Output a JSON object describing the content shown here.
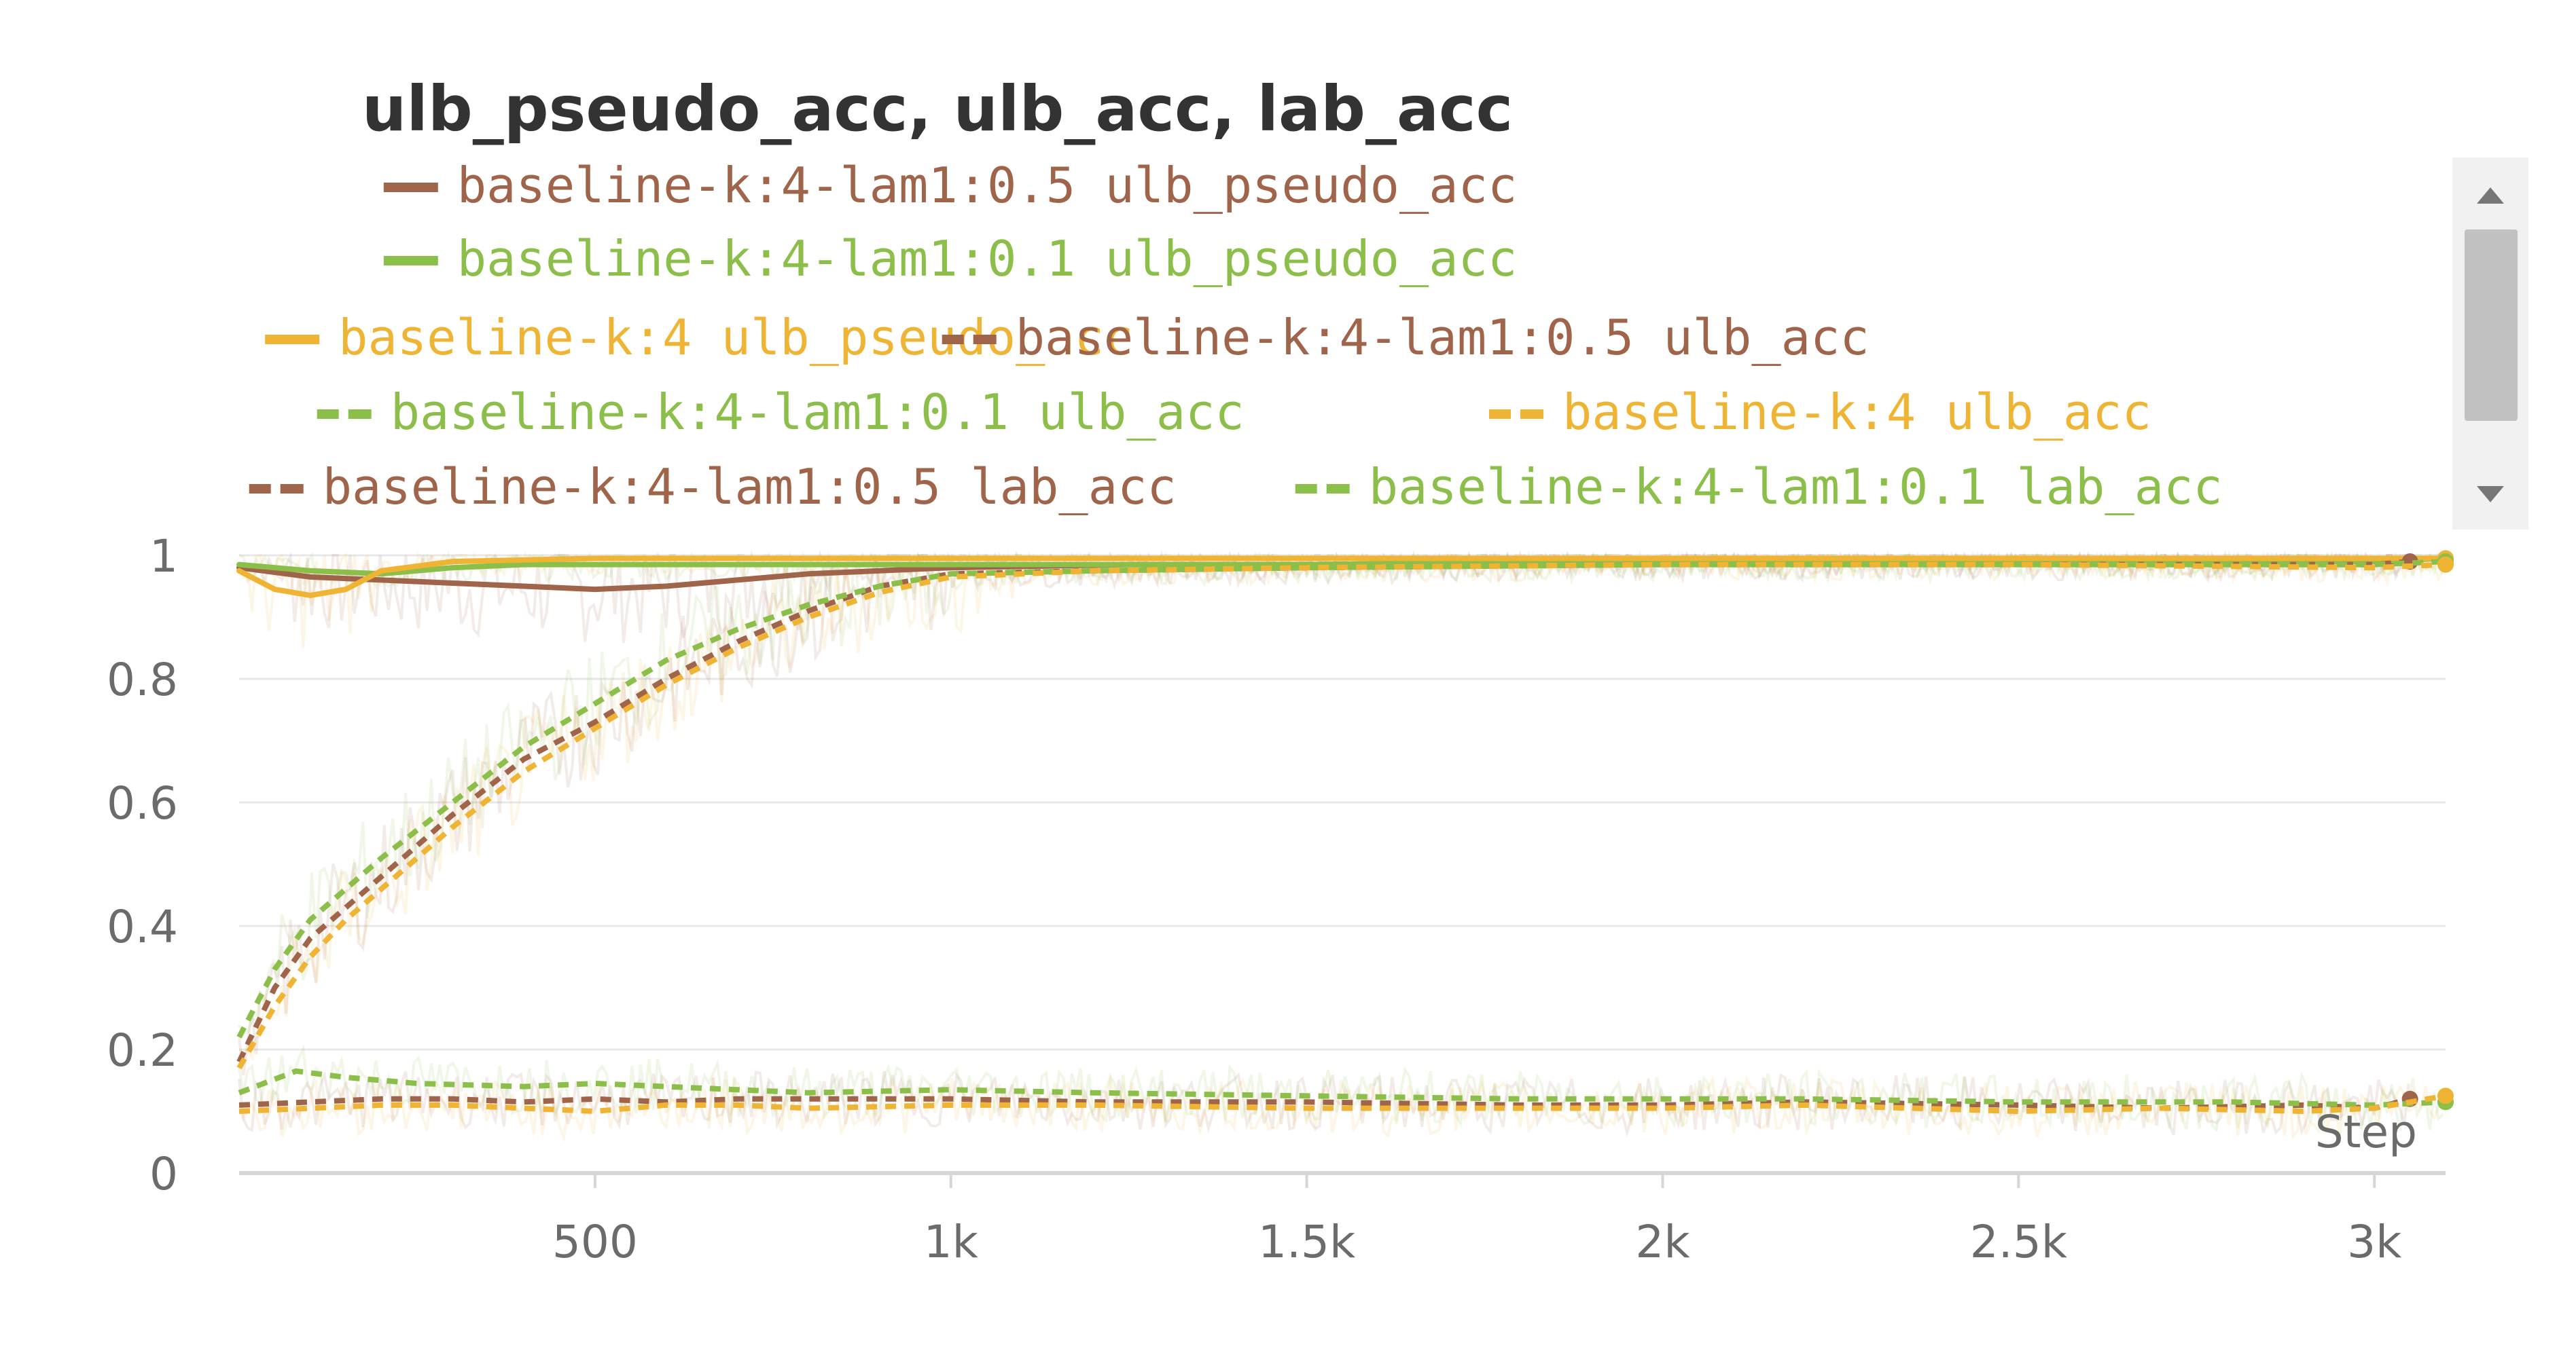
{
  "chart_data": {
    "type": "line",
    "title": "ulb_pseudo_acc, ulb_acc, lab_acc",
    "xlabel": "Step",
    "ylabel": "",
    "xlim": [
      0,
      3100
    ],
    "ylim": [
      0,
      1
    ],
    "xticks": [
      500,
      1000,
      1500,
      2000,
      2500,
      3000
    ],
    "xtick_labels": [
      "500",
      "1k",
      "1.5k",
      "2k",
      "2.5k",
      "3k"
    ],
    "yticks": [
      0,
      0.2,
      0.4,
      0.6,
      0.8,
      1
    ],
    "ytick_labels": [
      "0",
      "0.2",
      "0.4",
      "0.6",
      "0.8",
      "1"
    ],
    "grid": true,
    "legend_position": "top",
    "colors": {
      "brown": "#a0644b",
      "green": "#8cbf4a",
      "orange": "#f0b435",
      "raw_band": "#efe6cf",
      "axis": "#d6d6d6",
      "grid": "#e8e8e8"
    },
    "series": [
      {
        "name": "baseline-k:4-lam1:0.5 ulb_pseudo_acc",
        "color": "#a0644b",
        "style": "solid",
        "points": [
          [
            0,
            0.98
          ],
          [
            100,
            0.965
          ],
          [
            200,
            0.96
          ],
          [
            300,
            0.955
          ],
          [
            400,
            0.95
          ],
          [
            500,
            0.945
          ],
          [
            600,
            0.95
          ],
          [
            700,
            0.96
          ],
          [
            800,
            0.97
          ],
          [
            900,
            0.975
          ],
          [
            1000,
            0.98
          ],
          [
            1250,
            0.985
          ],
          [
            1500,
            0.985
          ],
          [
            2000,
            0.99
          ],
          [
            2500,
            0.99
          ],
          [
            3000,
            0.99
          ],
          [
            3050,
            0.99
          ]
        ]
      },
      {
        "name": "baseline-k:4-lam1:0.1 ulb_pseudo_acc",
        "color": "#8cbf4a",
        "style": "solid",
        "points": [
          [
            0,
            0.985
          ],
          [
            100,
            0.975
          ],
          [
            200,
            0.97
          ],
          [
            300,
            0.98
          ],
          [
            400,
            0.985
          ],
          [
            500,
            0.985
          ],
          [
            700,
            0.985
          ],
          [
            900,
            0.985
          ],
          [
            1000,
            0.985
          ],
          [
            1500,
            0.985
          ],
          [
            2000,
            0.99
          ],
          [
            2500,
            0.99
          ],
          [
            3000,
            0.99
          ],
          [
            3100,
            0.995
          ]
        ]
      },
      {
        "name": "baseline-k:4 ulb_pseudo_acc",
        "color": "#f0b435",
        "style": "solid",
        "points": [
          [
            0,
            0.975
          ],
          [
            50,
            0.945
          ],
          [
            100,
            0.935
          ],
          [
            150,
            0.945
          ],
          [
            200,
            0.975
          ],
          [
            300,
            0.99
          ],
          [
            500,
            0.995
          ],
          [
            1000,
            0.995
          ],
          [
            1500,
            0.995
          ],
          [
            2000,
            0.995
          ],
          [
            2500,
            0.995
          ],
          [
            3000,
            0.995
          ],
          [
            3100,
            0.995
          ]
        ]
      },
      {
        "name": "baseline-k:4-lam1:0.5 ulb_acc",
        "color": "#a0644b",
        "style": "dashed",
        "points": [
          [
            0,
            0.18
          ],
          [
            50,
            0.3
          ],
          [
            100,
            0.38
          ],
          [
            150,
            0.43
          ],
          [
            200,
            0.48
          ],
          [
            300,
            0.58
          ],
          [
            400,
            0.67
          ],
          [
            500,
            0.73
          ],
          [
            600,
            0.8
          ],
          [
            700,
            0.86
          ],
          [
            800,
            0.91
          ],
          [
            900,
            0.95
          ],
          [
            1000,
            0.97
          ],
          [
            1200,
            0.975
          ],
          [
            1500,
            0.98
          ],
          [
            2000,
            0.985
          ],
          [
            2500,
            0.985
          ],
          [
            3000,
            0.985
          ],
          [
            3050,
            0.99
          ]
        ]
      },
      {
        "name": "baseline-k:4-lam1:0.1 ulb_acc",
        "color": "#8cbf4a",
        "style": "dashed",
        "points": [
          [
            0,
            0.22
          ],
          [
            50,
            0.33
          ],
          [
            100,
            0.41
          ],
          [
            150,
            0.46
          ],
          [
            200,
            0.51
          ],
          [
            300,
            0.6
          ],
          [
            400,
            0.69
          ],
          [
            500,
            0.76
          ],
          [
            600,
            0.83
          ],
          [
            700,
            0.88
          ],
          [
            800,
            0.92
          ],
          [
            900,
            0.95
          ],
          [
            1000,
            0.97
          ],
          [
            1200,
            0.975
          ],
          [
            1500,
            0.98
          ],
          [
            2000,
            0.985
          ],
          [
            2500,
            0.985
          ],
          [
            3000,
            0.985
          ],
          [
            3100,
            0.99
          ]
        ]
      },
      {
        "name": "baseline-k:4 ulb_acc",
        "color": "#f0b435",
        "style": "dashed",
        "points": [
          [
            0,
            0.17
          ],
          [
            50,
            0.27
          ],
          [
            100,
            0.35
          ],
          [
            150,
            0.41
          ],
          [
            200,
            0.46
          ],
          [
            300,
            0.56
          ],
          [
            400,
            0.65
          ],
          [
            500,
            0.72
          ],
          [
            600,
            0.79
          ],
          [
            700,
            0.85
          ],
          [
            800,
            0.9
          ],
          [
            900,
            0.94
          ],
          [
            1000,
            0.965
          ],
          [
            1200,
            0.975
          ],
          [
            1500,
            0.98
          ],
          [
            2000,
            0.985
          ],
          [
            2500,
            0.985
          ],
          [
            3000,
            0.98
          ],
          [
            3100,
            0.985
          ]
        ]
      },
      {
        "name": "baseline-k:4-lam1:0.5 lab_acc",
        "color": "#a0644b",
        "style": "dashed",
        "points": [
          [
            0,
            0.11
          ],
          [
            100,
            0.115
          ],
          [
            200,
            0.12
          ],
          [
            300,
            0.12
          ],
          [
            400,
            0.115
          ],
          [
            500,
            0.12
          ],
          [
            600,
            0.115
          ],
          [
            700,
            0.12
          ],
          [
            800,
            0.12
          ],
          [
            1000,
            0.12
          ],
          [
            1200,
            0.115
          ],
          [
            1500,
            0.115
          ],
          [
            1800,
            0.11
          ],
          [
            2000,
            0.11
          ],
          [
            2200,
            0.115
          ],
          [
            2500,
            0.11
          ],
          [
            2700,
            0.105
          ],
          [
            2900,
            0.11
          ],
          [
            3000,
            0.105
          ],
          [
            3050,
            0.12
          ]
        ]
      },
      {
        "name": "baseline-k:4-lam1:0.1 lab_acc",
        "color": "#8cbf4a",
        "style": "dashed",
        "points": [
          [
            0,
            0.13
          ],
          [
            80,
            0.165
          ],
          [
            150,
            0.155
          ],
          [
            250,
            0.145
          ],
          [
            400,
            0.14
          ],
          [
            500,
            0.145
          ],
          [
            600,
            0.14
          ],
          [
            700,
            0.135
          ],
          [
            800,
            0.13
          ],
          [
            1000,
            0.135
          ],
          [
            1200,
            0.13
          ],
          [
            1500,
            0.125
          ],
          [
            1800,
            0.12
          ],
          [
            2000,
            0.12
          ],
          [
            2200,
            0.12
          ],
          [
            2500,
            0.115
          ],
          [
            2800,
            0.115
          ],
          [
            3000,
            0.11
          ],
          [
            3100,
            0.115
          ]
        ]
      },
      {
        "name": "baseline-k:4 lab_acc",
        "color": "#f0b435",
        "style": "dashed",
        "points": [
          [
            0,
            0.1
          ],
          [
            100,
            0.105
          ],
          [
            200,
            0.11
          ],
          [
            300,
            0.11
          ],
          [
            400,
            0.105
          ],
          [
            500,
            0.1
          ],
          [
            600,
            0.11
          ],
          [
            700,
            0.11
          ],
          [
            800,
            0.105
          ],
          [
            1000,
            0.11
          ],
          [
            1200,
            0.11
          ],
          [
            1500,
            0.105
          ],
          [
            1800,
            0.105
          ],
          [
            2000,
            0.105
          ],
          [
            2200,
            0.11
          ],
          [
            2500,
            0.1
          ],
          [
            2700,
            0.105
          ],
          [
            2900,
            0.1
          ],
          [
            3000,
            0.105
          ],
          [
            3100,
            0.125
          ]
        ]
      }
    ]
  }
}
